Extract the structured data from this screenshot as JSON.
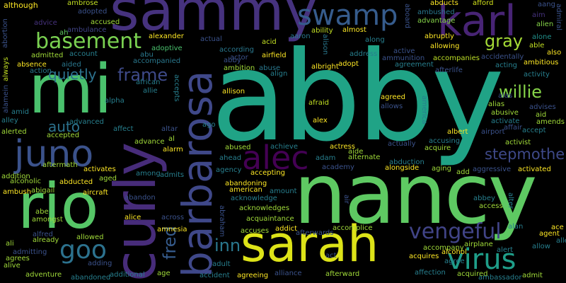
{
  "words": {
    "abby": "abby",
    "nancy": "nancy",
    "sammy": "sammy",
    "curly": "curly",
    "mi": "mi",
    "rio": "rio",
    "sarah": "sarah",
    "barbarosa": "barbarosa",
    "karl": "karl",
    "swamp": "swamp",
    "juno": "juno",
    "alec": "alec",
    "basement": "basement",
    "goo": "goo",
    "virus": "virus",
    "vengeful": "vengeful",
    "frame": "frame",
    "fred": "fred",
    "inn": "inn",
    "willie": "willie",
    "gray": "gray",
    "stepmother": "stepmother",
    "auto": "auto",
    "quietly": "quietly",
    "although": "although",
    "ambrose": "ambrose",
    "adopted": "adopted",
    "abducts": "abducts",
    "afford": "afford",
    "aang": "aang",
    "aim": "aim",
    "admiral": "admiral",
    "advice": "advice",
    "accused": "accused",
    "ambulance": "ambulance",
    "ambushed": "ambushed",
    "advantage": "advantage",
    "alien": "alien",
    "acid": "acid",
    "ability": "ability",
    "almost": "almost",
    "abruptly": "abruptly",
    "alone": "alone",
    "also": "also",
    "able": "able",
    "admitted": "admitted",
    "account": "account",
    "actual": "actual",
    "aaron": "aaron",
    "alexander": "alexander",
    "adoptive": "adoptive",
    "abu": "abu",
    "according": "according",
    "airfield": "airfield",
    "along": "along",
    "allowing": "allowing",
    "active": "active",
    "ammunition": "ammunition",
    "accompanies": "accompanies",
    "acting": "acting",
    "ambitious": "ambitious",
    "absence": "absence",
    "aided": "aided",
    "accompanied": "accompanied",
    "actor": "actor",
    "address": "address",
    "agreement": "agreement",
    "accidentally": "accidentally",
    "action": "action",
    "alison": "alison",
    "albright": "albright",
    "ambition": "ambition",
    "abuse": "abuse",
    "align": "align",
    "afterlife": "afterlife",
    "activity": "activity",
    "always": "always",
    "abortion": "abortion",
    "aboard": "aboard",
    "adopt": "adopt",
    "ah": "ah",
    "african": "african",
    "accepts": "accepts",
    "allison": "allison",
    "agreed": "agreed",
    "alas": "alas",
    "alias": "alias",
    "advises": "advises",
    "aid": "aid",
    "abusive": "abusive",
    "amends": "amends",
    "allie": "allie",
    "alpha": "alpha",
    "afraid": "afraid",
    "allows": "allows",
    "alley": "alley",
    "activate": "activate",
    "affair": "affair",
    "accept": "accept",
    "airport": "airport",
    "amid": "amid",
    "alamein": "alamein",
    "advanced": "advanced",
    "alex": "alex",
    "america": "america",
    "affect": "affect",
    "albert": "albert",
    "alerted": "alerted",
    "altar": "altar",
    "ago": "ago",
    "accusing": "accusing",
    "activist": "activist",
    "accepted": "accepted",
    "al": "al",
    "advance": "advance",
    "abused": "abused",
    "achieve": "achieve",
    "actress": "actress",
    "actually": "actually",
    "acquire": "acquire",
    "ahead": "ahead",
    "adam": "adam",
    "aide": "aide",
    "alarm": "alarm",
    "alternate": "alternate",
    "abduction": "abduction",
    "academy": "academy",
    "addition": "addition",
    "aftermath": "aftermath",
    "activates": "activates",
    "agency": "agency",
    "accepting": "accepting",
    "alongside": "alongside",
    "aging": "aging",
    "aggressive": "aggressive",
    "activated": "activated",
    "alcoholic": "alcoholic",
    "abducted": "abducted",
    "aged": "aged",
    "among": "among",
    "admits": "admits",
    "add": "add",
    "ambush": "ambush",
    "abigail": "abigail",
    "aircraft": "aircraft",
    "abandoning": "abandoning",
    "american": "american",
    "amount": "amount",
    "abbey": "abbey",
    "abandon": "abandon",
    "acknowledge": "acknowledge",
    "air": "air",
    "access": "access",
    "abe": "abe",
    "amongst": "amongst",
    "acknowledges": "acknowledges",
    "alter": "alter",
    "across": "across",
    "abraham": "abraham",
    "alice": "alice",
    "acquaintance": "acquaintance",
    "alfred": "alfred",
    "accuses": "accuses",
    "addict": "addict",
    "afterwards": "afterwards",
    "accomplice": "accomplice",
    "alan": "alan",
    "ace": "ace",
    "allowed": "allowed",
    "amnesia": "amnesia",
    "agent": "agent",
    "ali": "ali",
    "already": "already",
    "airplane": "airplane",
    "allow": "allow",
    "admitting": "admitting",
    "accompany": "accompany",
    "alert": "alert",
    "agrees": "agrees",
    "act": "act",
    "alcohol": "alcohol",
    "alive": "alive",
    "adding": "adding",
    "adult": "adult",
    "acquires": "acquires",
    "agree": "agree",
    "adventure": "adventure",
    "abandoned": "abandoned",
    "additional": "additional",
    "age": "age",
    "accident": "accident",
    "agreeing": "agreeing",
    "alliance": "alliance",
    "afterward": "afterward",
    "affection": "affection",
    "acquired": "acquired",
    "ambassador": "ambassador",
    "admit": "admit"
  },
  "colors": {
    "bg": "#000000",
    "palette": [
      "#440154",
      "#46327e",
      "#365c8d",
      "#277f8e",
      "#1fa187",
      "#4ac16d",
      "#a0da39",
      "#fde725"
    ]
  }
}
